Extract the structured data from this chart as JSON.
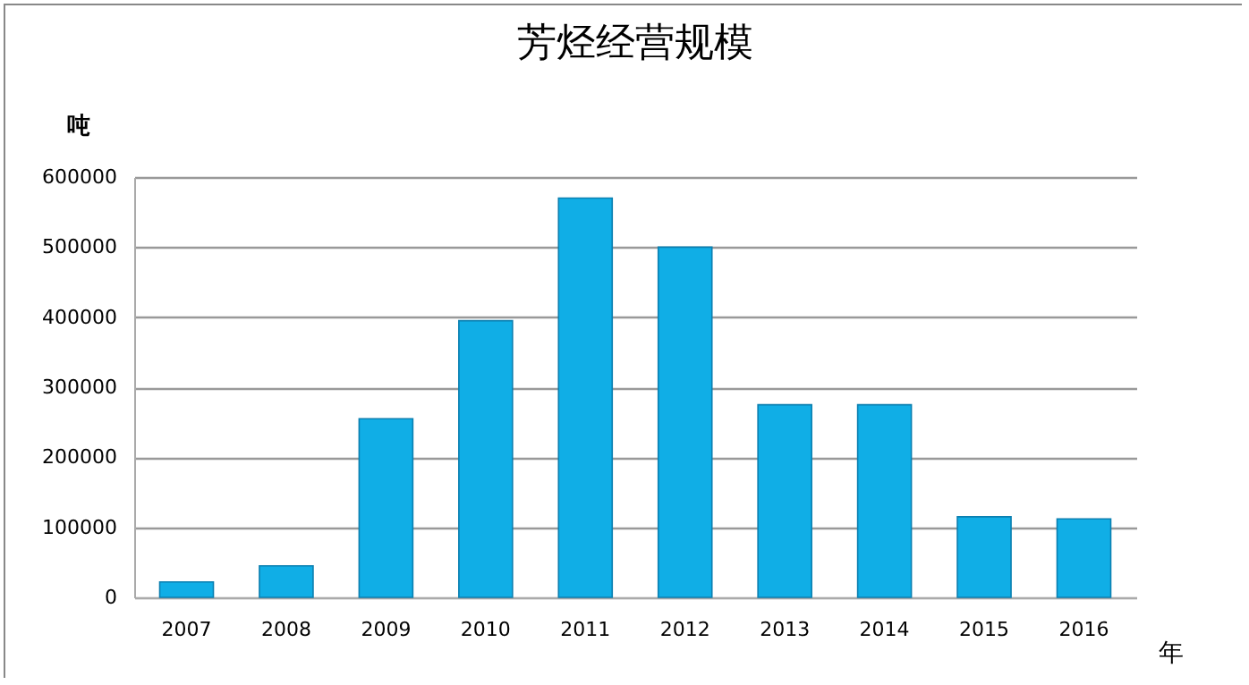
{
  "chart_data": {
    "type": "bar",
    "title": "芳烃经营规模",
    "xlabel": "年",
    "ylabel": "吨",
    "categories": [
      "2007",
      "2008",
      "2009",
      "2010",
      "2011",
      "2012",
      "2013",
      "2014",
      "2015",
      "2016"
    ],
    "values": [
      22000,
      45000,
      255000,
      395000,
      570000,
      500000,
      275000,
      275000,
      115000,
      112000
    ],
    "color": "#10aee6",
    "ylim": [
      0,
      600000
    ],
    "yticks": [
      0,
      100000,
      200000,
      300000,
      400000,
      500000,
      600000
    ],
    "grid": "y"
  }
}
